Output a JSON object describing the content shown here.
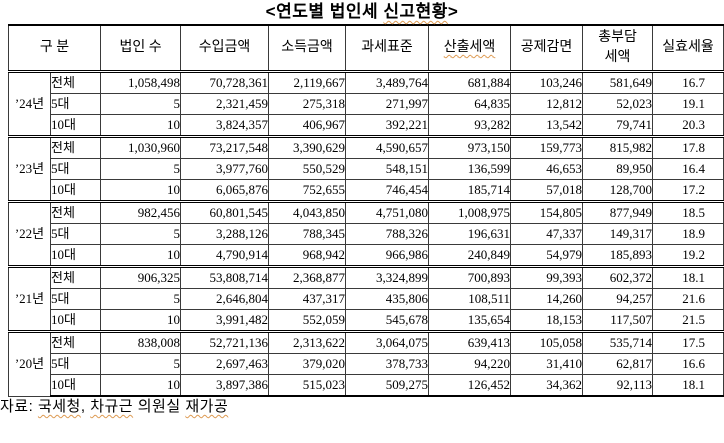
{
  "title": {
    "full": "<연도별 법인세 신고현황>",
    "parts": [
      "<연도별 법인세 ",
      "신고현황",
      ">"
    ]
  },
  "table": {
    "headers": [
      "구 분",
      "법인 수",
      "수입금액",
      "소득금액",
      "과세표준",
      "산출세액",
      "공제감면",
      "총부담\n세액",
      "실효세율"
    ],
    "groups": [
      {
        "year": "’24년",
        "rows": [
          {
            "label": "전체",
            "values": [
              "1,058,498",
              "70,728,361",
              "2,119,667",
              "3,489,764",
              "681,884",
              "103,246",
              "581,649",
              "16.7"
            ]
          },
          {
            "label": "5대",
            "values": [
              "5",
              "2,321,459",
              "275,318",
              "271,997",
              "64,835",
              "12,812",
              "52,023",
              "19.1"
            ]
          },
          {
            "label": "10대",
            "values": [
              "10",
              "3,824,357",
              "406,967",
              "392,221",
              "93,282",
              "13,542",
              "79,741",
              "20.3"
            ]
          }
        ]
      },
      {
        "year": "’23년",
        "rows": [
          {
            "label": "전체",
            "values": [
              "1,030,960",
              "73,217,548",
              "3,390,629",
              "4,590,657",
              "973,150",
              "159,773",
              "815,982",
              "17.8"
            ]
          },
          {
            "label": "5대",
            "values": [
              "5",
              "3,977,760",
              "550,529",
              "548,151",
              "136,599",
              "46,653",
              "89,950",
              "16.4"
            ]
          },
          {
            "label": "10대",
            "values": [
              "10",
              "6,065,876",
              "752,655",
              "746,454",
              "185,714",
              "57,018",
              "128,700",
              "17.2"
            ]
          }
        ]
      },
      {
        "year": "’22년",
        "rows": [
          {
            "label": "전체",
            "values": [
              "982,456",
              "60,801,545",
              "4,043,850",
              "4,751,080",
              "1,008,975",
              "154,805",
              "877,949",
              "18.5"
            ]
          },
          {
            "label": "5대",
            "values": [
              "5",
              "3,288,126",
              "788,345",
              "788,326",
              "196,631",
              "47,337",
              "149,317",
              "18.9"
            ]
          },
          {
            "label": "10대",
            "values": [
              "10",
              "4,790,914",
              "968,942",
              "966,986",
              "240,849",
              "54,979",
              "185,893",
              "19.2"
            ]
          }
        ]
      },
      {
        "year": "’21년",
        "rows": [
          {
            "label": "전체",
            "values": [
              "906,325",
              "53,808,714",
              "2,368,877",
              "3,324,899",
              "700,893",
              "99,393",
              "602,372",
              "18.1"
            ]
          },
          {
            "label": "5대",
            "values": [
              "5",
              "2,646,804",
              "437,317",
              "435,806",
              "108,511",
              "14,260",
              "94,257",
              "21.6"
            ]
          },
          {
            "label": "10대",
            "values": [
              "10",
              "3,991,482",
              "552,059",
              "545,678",
              "135,654",
              "18,153",
              "117,507",
              "21.5"
            ]
          }
        ]
      },
      {
        "year": "’20년",
        "rows": [
          {
            "label": "전체",
            "values": [
              "838,008",
              "52,721,136",
              "2,313,622",
              "3,064,075",
              "639,413",
              "105,058",
              "535,714",
              "17.5"
            ]
          },
          {
            "label": "5대",
            "values": [
              "5",
              "2,697,463",
              "379,020",
              "378,733",
              "94,220",
              "31,410",
              "62,817",
              "16.6"
            ]
          },
          {
            "label": "10대",
            "values": [
              "10",
              "3,897,386",
              "515,023",
              "509,275",
              "126,452",
              "34,362",
              "92,113",
              "18.1"
            ]
          }
        ]
      }
    ]
  },
  "footer": {
    "full": "자료: 국세청, 차규근 의원실 재가공",
    "parts": [
      "자료: ",
      "국세청",
      ", ",
      "차규근",
      " 의원실 ",
      "재가공"
    ]
  },
  "colors": {
    "spellcheck_underline": "#dd9a52",
    "grid_line": "#3a3a3a",
    "heavy_line": "#000000"
  }
}
